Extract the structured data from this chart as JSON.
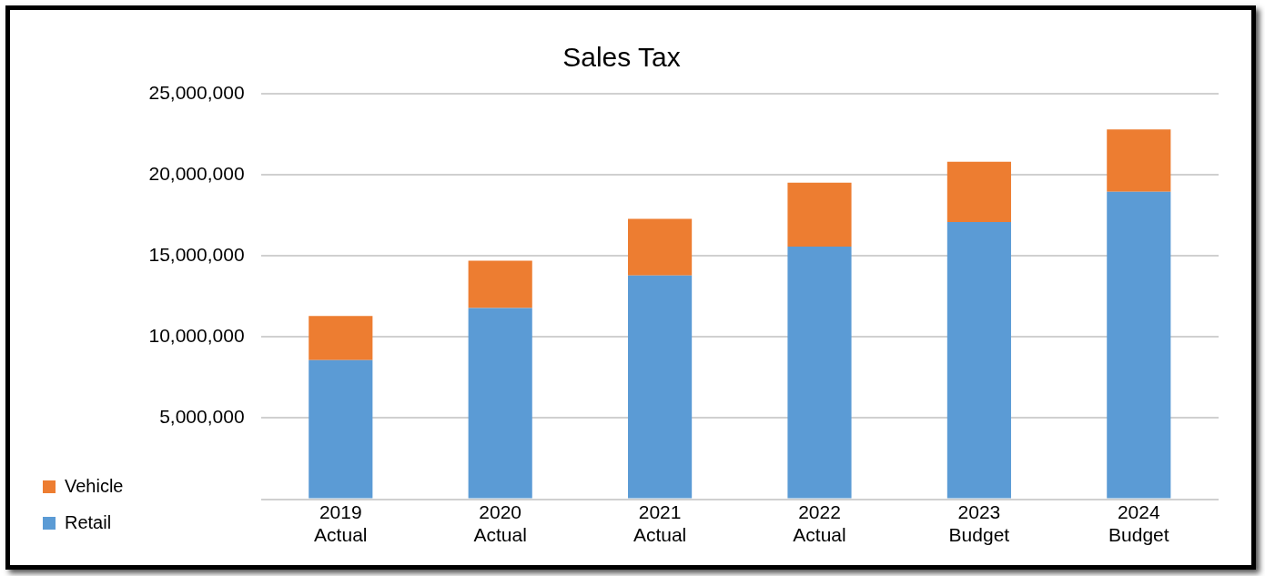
{
  "chart_data": {
    "type": "bar",
    "title": "Sales Tax",
    "stacked": true,
    "legend": "left",
    "grid": "y",
    "categories": [
      "2019 Actual",
      "2020 Actual",
      "2021 Actual",
      "2022 Actual",
      "2023 Budget",
      "2024 Budget"
    ],
    "series": [
      {
        "name": "Retail",
        "color": "#5b9bd5",
        "values": [
          8570000,
          11790000,
          13790000,
          15580000,
          17090000,
          18960000
        ]
      },
      {
        "name": "Vehicle",
        "color": "#ed7d31",
        "values": [
          2720000,
          2920000,
          3500000,
          3930000,
          3710000,
          3840000
        ]
      }
    ],
    "ylim": [
      0,
      25000000
    ],
    "yticks": [
      {
        "value": 0,
        "label": null
      },
      {
        "value": 5000000,
        "label": "5,000,000"
      },
      {
        "value": 10000000,
        "label": "10,000,000"
      },
      {
        "value": 15000000,
        "label": "15,000,000"
      },
      {
        "value": 20000000,
        "label": "20,000,000"
      },
      {
        "value": 25000000,
        "label": "25,000,000"
      }
    ]
  }
}
